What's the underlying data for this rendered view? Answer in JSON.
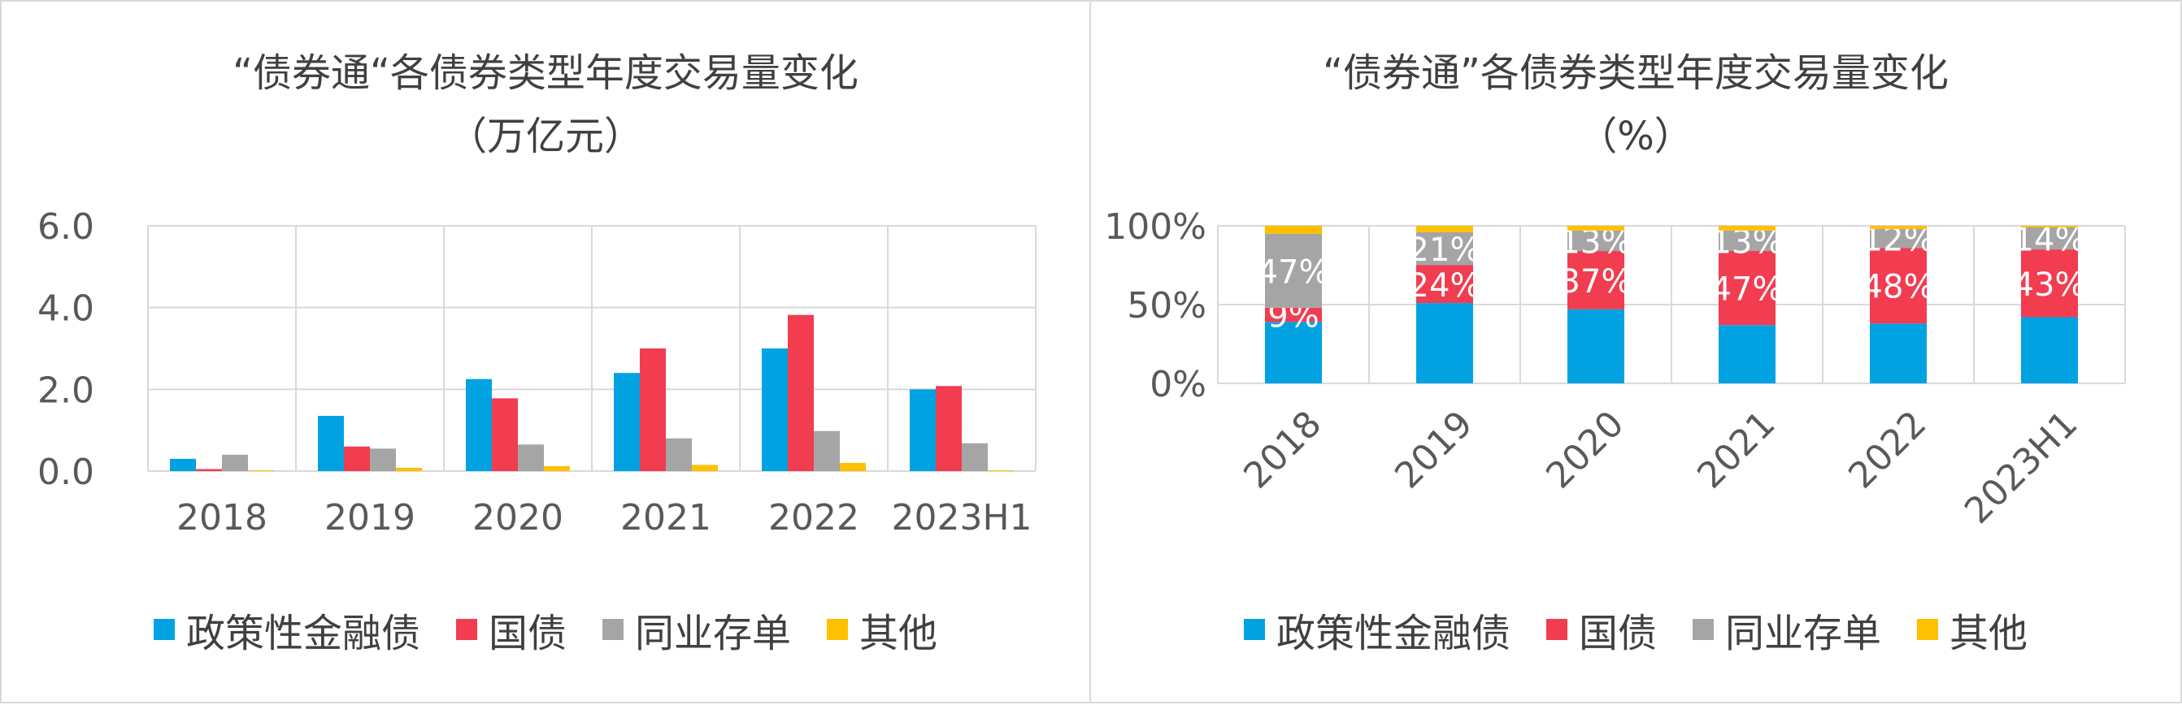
{
  "colors": {
    "政策性金融债": "#00a2e2",
    "国债": "#f23c50",
    "同业存单": "#a5a5a5",
    "其他": "#ffc000"
  },
  "legend": [
    "政策性金融债",
    "国债",
    "同业存单",
    "其他"
  ],
  "left": {
    "title_line1": "“债券通“各债券类型年度交易量变化",
    "title_line2": "（万亿元）"
  },
  "right": {
    "title_line1": "“债券通”各债券类型年度交易量变化",
    "title_line2": "（%）"
  },
  "chart_data": [
    {
      "type": "bar",
      "title": "“债券通“各债券类型年度交易量变化（万亿元）",
      "categories": [
        "2018",
        "2019",
        "2020",
        "2021",
        "2022",
        "2023H1"
      ],
      "series": [
        {
          "name": "政策性金融债",
          "values": [
            0.3,
            1.35,
            2.25,
            2.4,
            3.0,
            2.0
          ]
        },
        {
          "name": "国债",
          "values": [
            0.05,
            0.6,
            1.78,
            3.0,
            3.82,
            2.08
          ]
        },
        {
          "name": "同业存单",
          "values": [
            0.4,
            0.55,
            0.65,
            0.8,
            0.98,
            0.68
          ]
        },
        {
          "name": "其他",
          "values": [
            0.02,
            0.08,
            0.12,
            0.15,
            0.2,
            0.02
          ]
        }
      ],
      "ylim": [
        0,
        6
      ],
      "yticks": [
        "0.0",
        "2.0",
        "4.0",
        "6.0"
      ],
      "grid": true,
      "legend_position": "bottom"
    },
    {
      "type": "bar",
      "stacked": true,
      "title": "“债券通”各债券类型年度交易量变化（%）",
      "categories": [
        "2018",
        "2019",
        "2020",
        "2021",
        "2022",
        "2023H1"
      ],
      "series": [
        {
          "name": "政策性金融债",
          "values": [
            39,
            51,
            47,
            37,
            38,
            42
          ]
        },
        {
          "name": "国债",
          "values": [
            9,
            24,
            37,
            47,
            48,
            43
          ]
        },
        {
          "name": "同业存单",
          "values": [
            47,
            21,
            13,
            13,
            12,
            14
          ]
        },
        {
          "name": "其他",
          "values": [
            5,
            4,
            3,
            3,
            2,
            1
          ]
        }
      ],
      "data_labels": {
        "国债": [
          "9%",
          "24%",
          "37%",
          "47%",
          "48%",
          "43%"
        ],
        "同业存单": [
          "47%",
          "21%",
          "13%",
          "13%",
          "12%",
          "14%"
        ]
      },
      "ylim": [
        0,
        100
      ],
      "yticks": [
        "0%",
        "50%",
        "100%"
      ],
      "grid": true,
      "legend_position": "bottom"
    }
  ]
}
